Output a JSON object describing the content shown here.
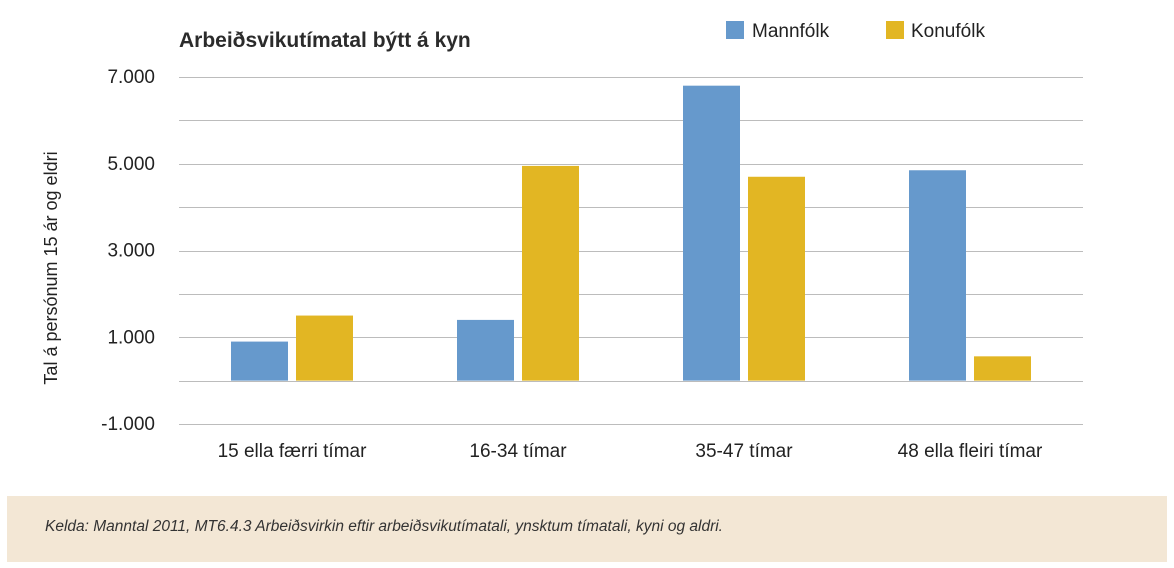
{
  "chart_data": {
    "type": "bar",
    "title": "Arbeiðsvikutímatal býtt á kyn",
    "xlabel": "",
    "ylabel": "Tal á persónum 15 ár og eldri",
    "categories": [
      "15 ella færri tímar",
      "16-34 tímar",
      "35-47 tímar",
      "48 ella fleiri tímar"
    ],
    "series": [
      {
        "name": "Mannfólk",
        "color": "#6699cc",
        "values": [
          900,
          1400,
          6800,
          4850
        ]
      },
      {
        "name": "Konufólk",
        "color": "#e2b623",
        "values": [
          1500,
          4950,
          4700,
          560
        ]
      }
    ],
    "ylim": [
      -1000,
      7000
    ],
    "yticks": [
      7000,
      5000,
      3000,
      1000,
      -1000
    ],
    "ytick_labels": [
      "7.000",
      "5.000",
      "3.000",
      "1.000",
      "-1.000"
    ],
    "gridlines": [
      7000,
      6000,
      5000,
      4000,
      3000,
      2000,
      1000,
      0,
      -1000
    ],
    "grid": true,
    "legend_position": "top-right"
  },
  "source": "Kelda: Manntal 2011, MT6.4.3 Arbeiðsvirkin eftir arbeiðsvikutímatali, ynsktum tímatali, kyni og aldri."
}
